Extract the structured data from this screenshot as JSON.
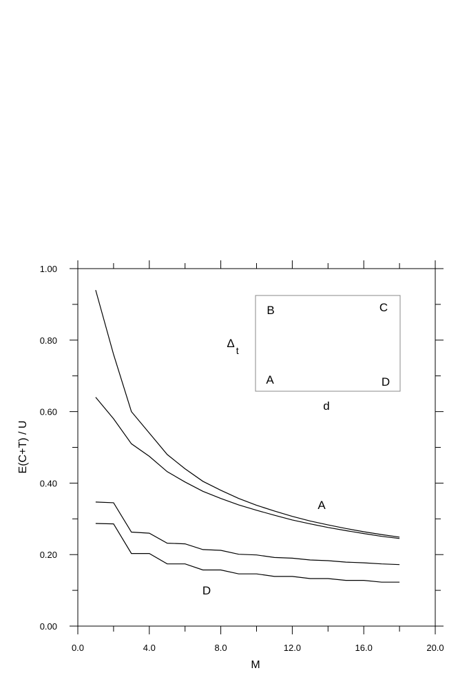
{
  "chart_data": {
    "type": "line",
    "title": "",
    "xlabel": "M",
    "ylabel": "E(C+T) / U",
    "xlim": [
      0,
      20
    ],
    "ylim": [
      0,
      1
    ],
    "x_ticks": [
      "0.0",
      "4.0",
      "8.0",
      "12.0",
      "16.0",
      "20.0"
    ],
    "y_ticks": [
      "0.00",
      "0.20",
      "0.40",
      "0.60",
      "0.80",
      "1.00"
    ],
    "x": [
      1,
      2,
      3,
      4,
      5,
      6,
      7,
      8,
      9,
      10,
      11,
      12,
      13,
      14,
      15,
      16,
      17,
      18
    ],
    "series": [
      {
        "name": "",
        "values": [
          0.94,
          0.76,
          0.6,
          0.54,
          0.48,
          0.44,
          0.405,
          0.38,
          0.357,
          0.338,
          0.322,
          0.307,
          0.294,
          0.283,
          0.273,
          0.264,
          0.256,
          0.249
        ]
      },
      {
        "name": "",
        "values": [
          0.64,
          0.58,
          0.51,
          0.475,
          0.432,
          0.403,
          0.377,
          0.357,
          0.339,
          0.324,
          0.31,
          0.297,
          0.286,
          0.276,
          0.267,
          0.259,
          0.251,
          0.245
        ]
      },
      {
        "name": "",
        "values": [
          0.347,
          0.345,
          0.263,
          0.26,
          0.232,
          0.23,
          0.214,
          0.212,
          0.201,
          0.199,
          0.192,
          0.19,
          0.185,
          0.183,
          0.179,
          0.177,
          0.174,
          0.172
        ]
      },
      {
        "name": "",
        "values": [
          0.287,
          0.286,
          0.203,
          0.203,
          0.174,
          0.174,
          0.157,
          0.157,
          0.146,
          0.146,
          0.139,
          0.139,
          0.133,
          0.133,
          0.128,
          0.128,
          0.123,
          0.123
        ]
      }
    ],
    "annotations": [
      {
        "text": "A",
        "x": 13.6,
        "y": 0.33
      },
      {
        "text": "D",
        "x": 7.1,
        "y": 0.095
      }
    ],
    "inset": {
      "corner_labels": {
        "top_left": "B",
        "top_right": "C",
        "bottom_left": "A",
        "bottom_right": "D"
      },
      "side_label_left": "Δ",
      "side_label_left_sub": "t",
      "side_label_bottom": "d"
    },
    "grid": false,
    "legend": "none"
  }
}
